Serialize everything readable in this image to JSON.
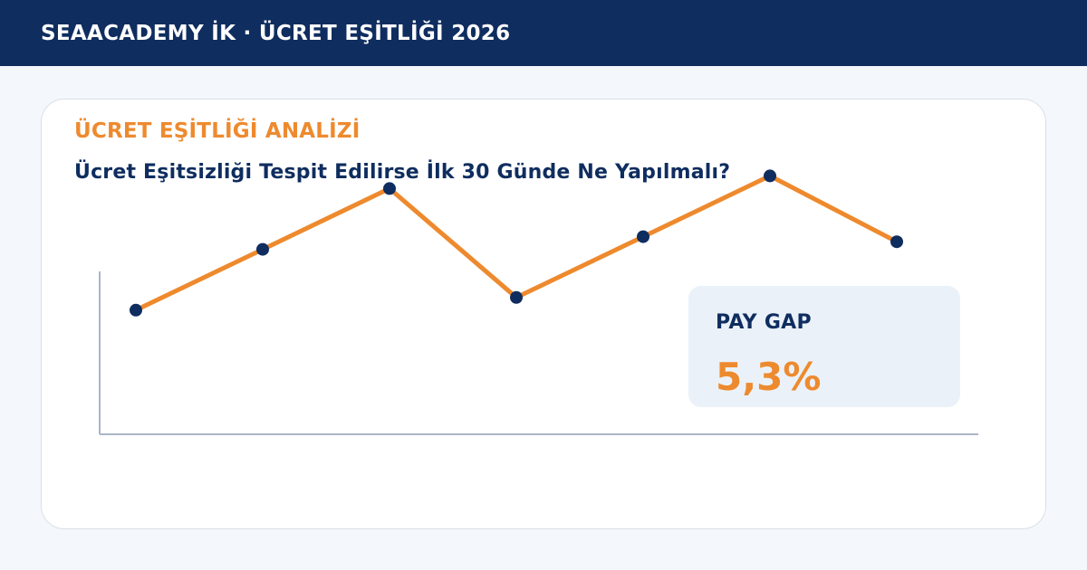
{
  "header": {
    "title": "SEAACADEMY İK · ÜCRET EŞİTLİĞİ 2026"
  },
  "card": {
    "eyebrow": "ÜCRET EŞİTLİĞİ ANALİZİ",
    "headline": "Ücret Eşitsizliği Tespit Edilirse İlk 30 Günde Ne Yapılmalı?"
  },
  "kpi": {
    "label": "PAY GAP",
    "value": "5,3%"
  },
  "colors": {
    "header_bg": "#0f2d5f",
    "accent": "#ee8a2e",
    "marker": "#0f2d5f",
    "kpi_bg": "#eaf1f9",
    "axis": "#aab6c6"
  },
  "chart_data": {
    "type": "line",
    "title": "",
    "xlabel": "",
    "ylabel": "",
    "x": [
      1,
      2,
      3,
      4,
      5,
      6,
      7
    ],
    "ylim": [
      0,
      100
    ],
    "series": [
      {
        "values": [
          49,
          73,
          97,
          54,
          78,
          102,
          76
        ]
      }
    ],
    "grid": false
  }
}
